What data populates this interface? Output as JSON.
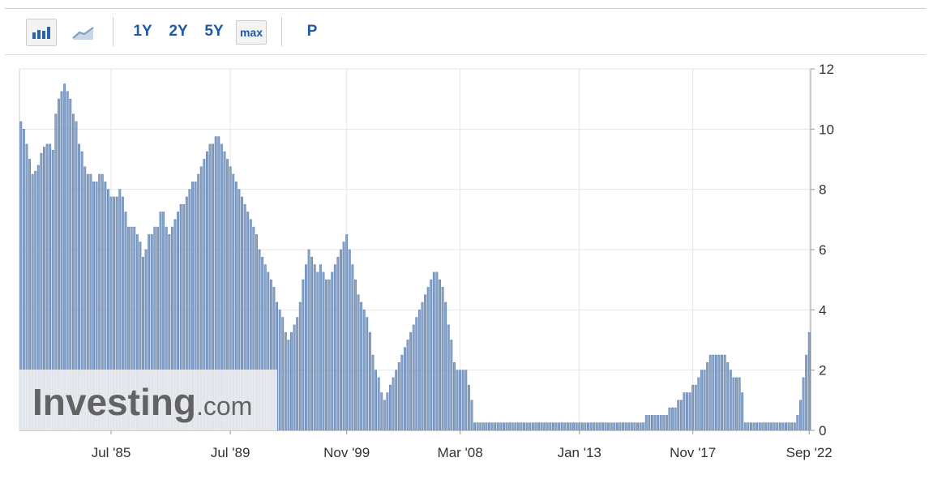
{
  "toolbar": {
    "buttons": [
      "1Y",
      "2Y",
      "5Y",
      "max",
      "P"
    ]
  },
  "watermark": {
    "brand": "Investing",
    "suffix": ".com"
  },
  "chart_data": {
    "type": "bar",
    "color": "#8aa4c8",
    "edge_color": "#5d7fae",
    "grid": true,
    "y_axis_side": "right",
    "ylim": [
      0,
      12
    ],
    "yticks": [
      0,
      2,
      4,
      6,
      8,
      10,
      12
    ],
    "categories": [
      null,
      null,
      null,
      null,
      null,
      null,
      null,
      null,
      null,
      null,
      null,
      null,
      null,
      null,
      null,
      null,
      null,
      null,
      null,
      null,
      null,
      null,
      null,
      null,
      null,
      null,
      null,
      null,
      null,
      null,
      null,
      "Jul '85",
      null,
      null,
      null,
      null,
      null,
      null,
      null,
      null,
      null,
      null,
      null,
      null,
      null,
      null,
      null,
      null,
      null,
      null,
      null,
      null,
      null,
      null,
      null,
      null,
      null,
      null,
      null,
      null,
      null,
      null,
      null,
      null,
      null,
      null,
      null,
      null,
      null,
      null,
      null,
      null,
      "Jul '89",
      null,
      null,
      null,
      null,
      null,
      null,
      null,
      null,
      null,
      null,
      null,
      null,
      null,
      null,
      null,
      null,
      null,
      null,
      null,
      null,
      null,
      null,
      null,
      null,
      null,
      null,
      null,
      null,
      null,
      null,
      null,
      null,
      null,
      null,
      null,
      null,
      null,
      null,
      null,
      "Nov '99",
      null,
      null,
      null,
      null,
      null,
      null,
      null,
      null,
      null,
      null,
      null,
      null,
      null,
      null,
      null,
      null,
      null,
      null,
      null,
      null,
      null,
      null,
      null,
      null,
      null,
      null,
      null,
      null,
      null,
      null,
      null,
      null,
      null,
      null,
      null,
      null,
      null,
      null,
      "Mar '08",
      null,
      null,
      null,
      null,
      null,
      null,
      null,
      null,
      null,
      null,
      null,
      null,
      null,
      null,
      null,
      null,
      null,
      null,
      null,
      null,
      null,
      null,
      null,
      null,
      null,
      null,
      null,
      null,
      null,
      null,
      null,
      null,
      null,
      null,
      null,
      null,
      null,
      null,
      null,
      null,
      "Jan '13",
      null,
      null,
      null,
      null,
      null,
      null,
      null,
      null,
      null,
      null,
      null,
      null,
      null,
      null,
      null,
      null,
      null,
      null,
      null,
      null,
      null,
      null,
      null,
      null,
      null,
      null,
      null,
      null,
      null,
      null,
      null,
      null,
      null,
      null,
      null,
      null,
      null,
      null,
      "Nov '17",
      null,
      null,
      null,
      null,
      null,
      null,
      null,
      null,
      null,
      null,
      null,
      null,
      null,
      null,
      null,
      null,
      null,
      null,
      null,
      null,
      null,
      null,
      null,
      null,
      null,
      null,
      null,
      null,
      null,
      null,
      null,
      null,
      null,
      null,
      null,
      null,
      null,
      null,
      null,
      "Sep '22"
    ],
    "values": [
      10.25,
      10,
      9.5,
      9,
      8.5,
      8.6,
      8.8,
      9.2,
      9.4,
      9.5,
      9.5,
      9.3,
      10.5,
      11,
      11.25,
      11.5,
      11.25,
      11,
      10.5,
      10.25,
      9.5,
      9.25,
      8.75,
      8.5,
      8.5,
      8.25,
      8.25,
      8.5,
      8.5,
      8.25,
      8,
      7.75,
      7.75,
      7.75,
      8,
      7.75,
      7.25,
      6.75,
      6.75,
      6.75,
      6.5,
      6.25,
      5.75,
      6,
      6.5,
      6.5,
      6.75,
      6.75,
      7.25,
      7.25,
      6.75,
      6.5,
      6.75,
      7,
      7.25,
      7.5,
      7.5,
      7.75,
      8,
      8.25,
      8.25,
      8.5,
      8.75,
      9,
      9.25,
      9.5,
      9.5,
      9.75,
      9.75,
      9.5,
      9.25,
      9,
      8.75,
      8.5,
      8.25,
      8,
      7.75,
      7.5,
      7.25,
      7,
      6.75,
      6.5,
      6,
      5.75,
      5.5,
      5.25,
      5,
      4.75,
      4.25,
      4,
      3.75,
      3.25,
      3,
      3.25,
      3.5,
      3.75,
      4.25,
      5,
      5.5,
      6,
      5.75,
      5.5,
      5.25,
      5.5,
      5.25,
      5,
      5,
      5.25,
      5.5,
      5.75,
      6,
      6.25,
      6.5,
      6,
      5.5,
      5,
      4.5,
      4.25,
      4,
      3.75,
      3.25,
      2.5,
      2,
      1.75,
      1.25,
      1,
      1.25,
      1.5,
      1.75,
      2,
      2.25,
      2.5,
      2.75,
      3,
      3.25,
      3.5,
      3.75,
      4,
      4.25,
      4.5,
      4.75,
      5,
      5.25,
      5.25,
      5,
      4.75,
      4.25,
      3.5,
      3,
      2.25,
      2,
      2,
      2,
      2,
      1.5,
      1,
      0.25,
      0.25,
      0.25,
      0.25,
      0.25,
      0.25,
      0.25,
      0.25,
      0.25,
      0.25,
      0.25,
      0.25,
      0.25,
      0.25,
      0.25,
      0.25,
      0.25,
      0.25,
      0.25,
      0.25,
      0.25,
      0.25,
      0.25,
      0.25,
      0.25,
      0.25,
      0.25,
      0.25,
      0.25,
      0.25,
      0.25,
      0.25,
      0.25,
      0.25,
      0.25,
      0.25,
      0.25,
      0.25,
      0.25,
      0.25,
      0.25,
      0.25,
      0.25,
      0.25,
      0.25,
      0.25,
      0.25,
      0.25,
      0.25,
      0.25,
      0.25,
      0.25,
      0.25,
      0.25,
      0.25,
      0.25,
      0.25,
      0.25,
      0.25,
      0.5,
      0.5,
      0.5,
      0.5,
      0.5,
      0.5,
      0.5,
      0.5,
      0.75,
      0.75,
      0.75,
      1,
      1,
      1.25,
      1.25,
      1.25,
      1.5,
      1.5,
      1.75,
      2,
      2,
      2.25,
      2.5,
      2.5,
      2.5,
      2.5,
      2.5,
      2.5,
      2.25,
      2,
      1.75,
      1.75,
      1.75,
      1.25,
      0.25,
      0.25,
      0.25,
      0.25,
      0.25,
      0.25,
      0.25,
      0.25,
      0.25,
      0.25,
      0.25,
      0.25,
      0.25,
      0.25,
      0.25,
      0.25,
      0.25,
      0.25,
      0.5,
      1,
      1.75,
      2.5,
      3.25
    ]
  }
}
